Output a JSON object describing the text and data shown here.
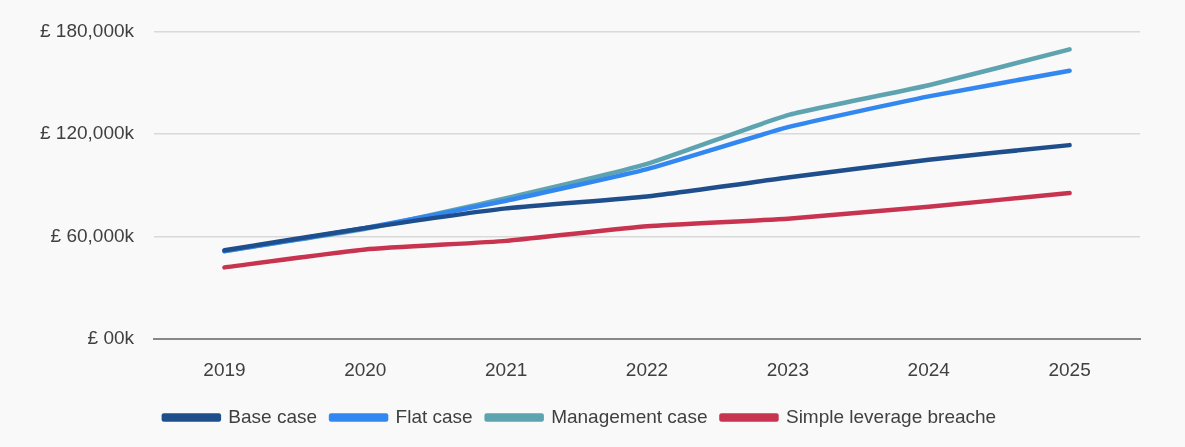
{
  "chart_data": {
    "type": "line",
    "categories": [
      "2019",
      "2020",
      "2021",
      "2022",
      "2023",
      "2024",
      "2025"
    ],
    "series": [
      {
        "name": "Base case",
        "color": "#1f4e8c",
        "values": [
          52000,
          65000,
          76500,
          83500,
          94500,
          105000,
          113500
        ]
      },
      {
        "name": "Flat case",
        "color": "#3387f0",
        "values": [
          51500,
          65000,
          81000,
          99500,
          124000,
          142000,
          157000
        ]
      },
      {
        "name": "Management case",
        "color": "#5ea4b0",
        "values": [
          51500,
          64500,
          82500,
          102500,
          131000,
          148500,
          169500
        ]
      },
      {
        "name": "Simple leverage breache",
        "color": "#c8344f",
        "values": [
          42000,
          52500,
          57500,
          66000,
          70500,
          77500,
          85500
        ]
      }
    ],
    "ylim": [
      0,
      180000
    ],
    "yticks": [
      {
        "value": 0,
        "label": "£ 00k"
      },
      {
        "value": 60000,
        "label": "£ 60,000k"
      },
      {
        "value": 120000,
        "label": "£ 120,000k"
      },
      {
        "value": 180000,
        "label": "£ 180,000k"
      }
    ],
    "grid": "y",
    "legend": "bottom",
    "marker": "none",
    "line_style": "solid"
  }
}
